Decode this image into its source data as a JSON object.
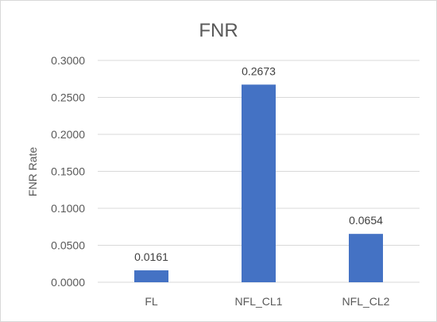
{
  "chart_data": {
    "type": "bar",
    "title": "FNR",
    "xlabel": "",
    "ylabel": "FNR Rate",
    "categories": [
      "FL",
      "NFL_CL1",
      "NFL_CL2"
    ],
    "values": [
      0.0161,
      0.2673,
      0.0654
    ],
    "data_labels": [
      "0.0161",
      "0.2673",
      "0.0654"
    ],
    "ylim": [
      0,
      0.3
    ],
    "yticks": [
      0,
      0.05,
      0.1,
      0.15,
      0.2,
      0.25,
      0.3
    ],
    "ytick_labels": [
      "0.0000",
      "0.0500",
      "0.1000",
      "0.1500",
      "0.2000",
      "0.2500",
      "0.3000"
    ],
    "grid": true,
    "legend": "none",
    "colors": {
      "bar": "#4472c4",
      "grid": "#d9d9d9",
      "text": "#595959"
    }
  }
}
